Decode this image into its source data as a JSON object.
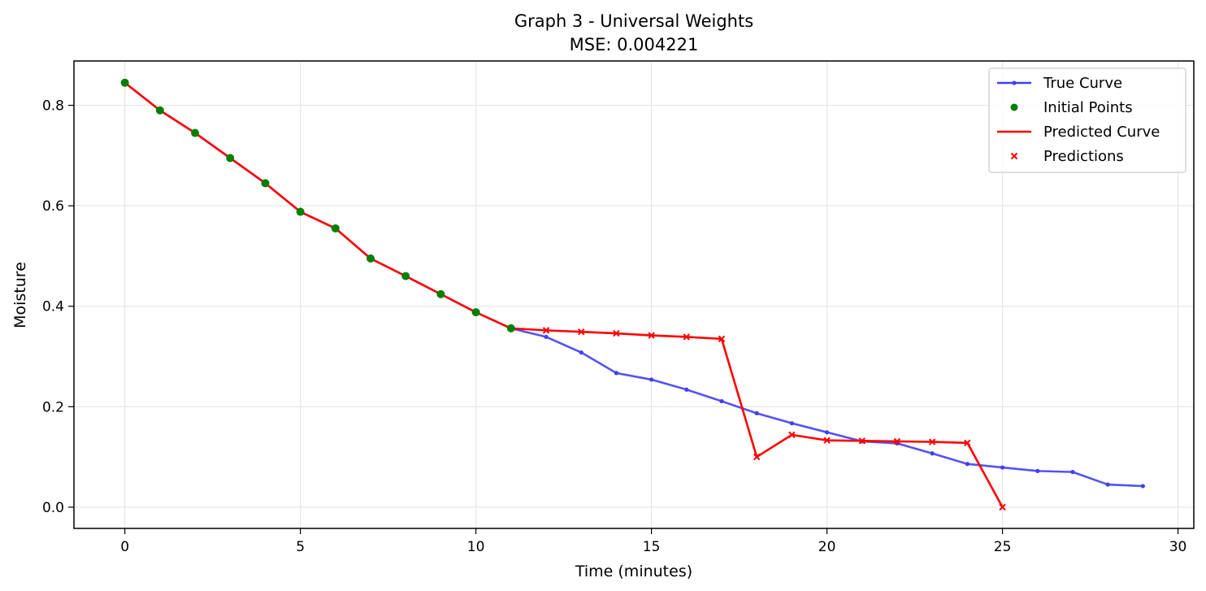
{
  "chart_data": {
    "type": "line",
    "title": "Graph 3 - Universal Weights",
    "subtitle": "MSE: 0.004221",
    "xlabel": "Time (minutes)",
    "ylabel": "Moisture",
    "xlim": [
      -1.45,
      30.45
    ],
    "ylim": [
      -0.0423,
      0.8883
    ],
    "xticks": [
      0,
      5,
      10,
      15,
      20,
      25,
      30
    ],
    "xtick_labels": [
      "0",
      "5",
      "10",
      "15",
      "20",
      "25",
      "30"
    ],
    "yticks": [
      0.0,
      0.2,
      0.4,
      0.6,
      0.8
    ],
    "ytick_labels": [
      "0.0",
      "0.2",
      "0.4",
      "0.6",
      "0.8"
    ],
    "grid": true,
    "legend_position": "top-right",
    "series": [
      {
        "name": "True Curve",
        "kind": "line-dot",
        "color": "#4040f0",
        "x": [
          0,
          1,
          2,
          3,
          4,
          5,
          6,
          7,
          8,
          9,
          10,
          11,
          12,
          13,
          14,
          15,
          16,
          17,
          18,
          19,
          20,
          21,
          22,
          23,
          24,
          25,
          26,
          27,
          28,
          29
        ],
        "y": [
          0.845,
          0.79,
          0.745,
          0.695,
          0.645,
          0.588,
          0.555,
          0.495,
          0.46,
          0.424,
          0.388,
          0.356,
          0.339,
          0.308,
          0.267,
          0.254,
          0.234,
          0.211,
          0.187,
          0.167,
          0.149,
          0.131,
          0.127,
          0.107,
          0.086,
          0.079,
          0.072,
          0.07,
          0.045,
          0.042
        ]
      },
      {
        "name": "Initial Points",
        "kind": "marker-circle",
        "color": "#008000",
        "x": [
          0,
          1,
          2,
          3,
          4,
          5,
          6,
          7,
          8,
          9,
          10,
          11
        ],
        "y": [
          0.845,
          0.79,
          0.745,
          0.695,
          0.645,
          0.588,
          0.555,
          0.495,
          0.46,
          0.424,
          0.388,
          0.356
        ]
      },
      {
        "name": "Predicted Curve",
        "kind": "line",
        "color": "#ff0000",
        "x": [
          0,
          1,
          2,
          3,
          4,
          5,
          6,
          7,
          8,
          9,
          10,
          11,
          12,
          13,
          14,
          15,
          16,
          17,
          18,
          19,
          20,
          21,
          22,
          23,
          24,
          25
        ],
        "y": [
          0.845,
          0.79,
          0.745,
          0.695,
          0.645,
          0.588,
          0.555,
          0.495,
          0.46,
          0.424,
          0.388,
          0.356,
          0.352,
          0.349,
          0.346,
          0.342,
          0.339,
          0.335,
          0.1,
          0.144,
          0.133,
          0.132,
          0.131,
          0.13,
          0.128,
          0.0
        ]
      },
      {
        "name": "Predictions",
        "kind": "marker-x",
        "color": "#ff0000",
        "x": [
          12,
          13,
          14,
          15,
          16,
          17,
          18,
          19,
          20,
          21,
          22,
          23,
          24,
          25
        ],
        "y": [
          0.352,
          0.349,
          0.346,
          0.342,
          0.339,
          0.335,
          0.1,
          0.144,
          0.133,
          0.132,
          0.131,
          0.13,
          0.128,
          0.0
        ]
      }
    ]
  }
}
